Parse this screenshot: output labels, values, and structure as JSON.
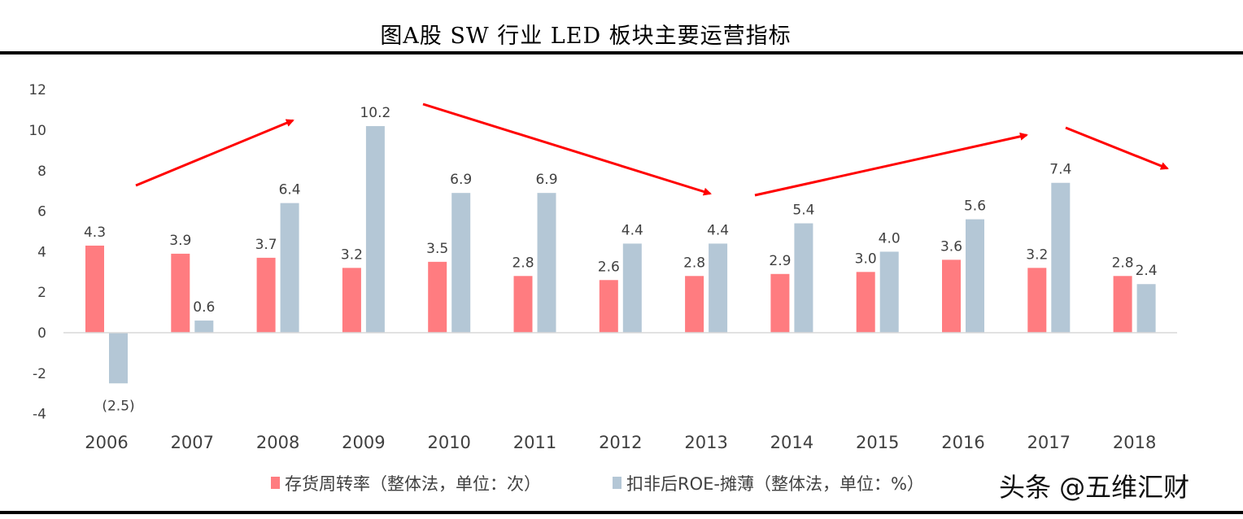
{
  "title": "图A股 SW 行业 LED 板块主要运营指标",
  "watermark": "头条 @五维汇财",
  "chart_data": {
    "type": "bar",
    "title": "图A股 SW 行业 LED 板块主要运营指标",
    "categories": [
      "2006",
      "2007",
      "2008",
      "2009",
      "2010",
      "2011",
      "2012",
      "2013",
      "2014",
      "2015",
      "2016",
      "2017",
      "2018"
    ],
    "series": [
      {
        "name": "存货周转率（整体法，单位：次）",
        "color": "#FF7C80",
        "values": [
          4.3,
          3.9,
          3.7,
          3.2,
          3.5,
          2.8,
          2.6,
          2.8,
          2.9,
          3.0,
          3.6,
          3.2,
          2.8
        ],
        "labels": [
          "4.3",
          "3.9",
          "3.7",
          "3.2",
          "3.5",
          "2.8",
          "2.6",
          "2.8",
          "2.9",
          "3.0",
          "3.6",
          "3.2",
          "2.8"
        ]
      },
      {
        "name": "扣非后ROE-摊薄（整体法，单位：%）",
        "color": "#B4C7D6",
        "values": [
          -2.5,
          0.6,
          6.4,
          10.2,
          6.9,
          6.9,
          4.4,
          4.4,
          5.4,
          4.0,
          5.6,
          7.4,
          2.4
        ],
        "labels": [
          "(2.5)",
          "0.6",
          "6.4",
          "10.2",
          "6.9",
          "6.9",
          "4.4",
          "4.4",
          "5.4",
          "4.0",
          "5.6",
          "7.4",
          "2.4"
        ]
      }
    ],
    "ylim": [
      -4,
      12
    ],
    "yticks": [
      "-4",
      "-2",
      "0",
      "2",
      "4",
      "6",
      "8",
      "10",
      "12"
    ],
    "grid": false,
    "legend": "bottom",
    "negative_label_color": "#FF0000",
    "annotations": {
      "type": "trend-arrows",
      "color": "#FF0000",
      "directions": [
        "up",
        "down",
        "up",
        "down"
      ]
    }
  }
}
